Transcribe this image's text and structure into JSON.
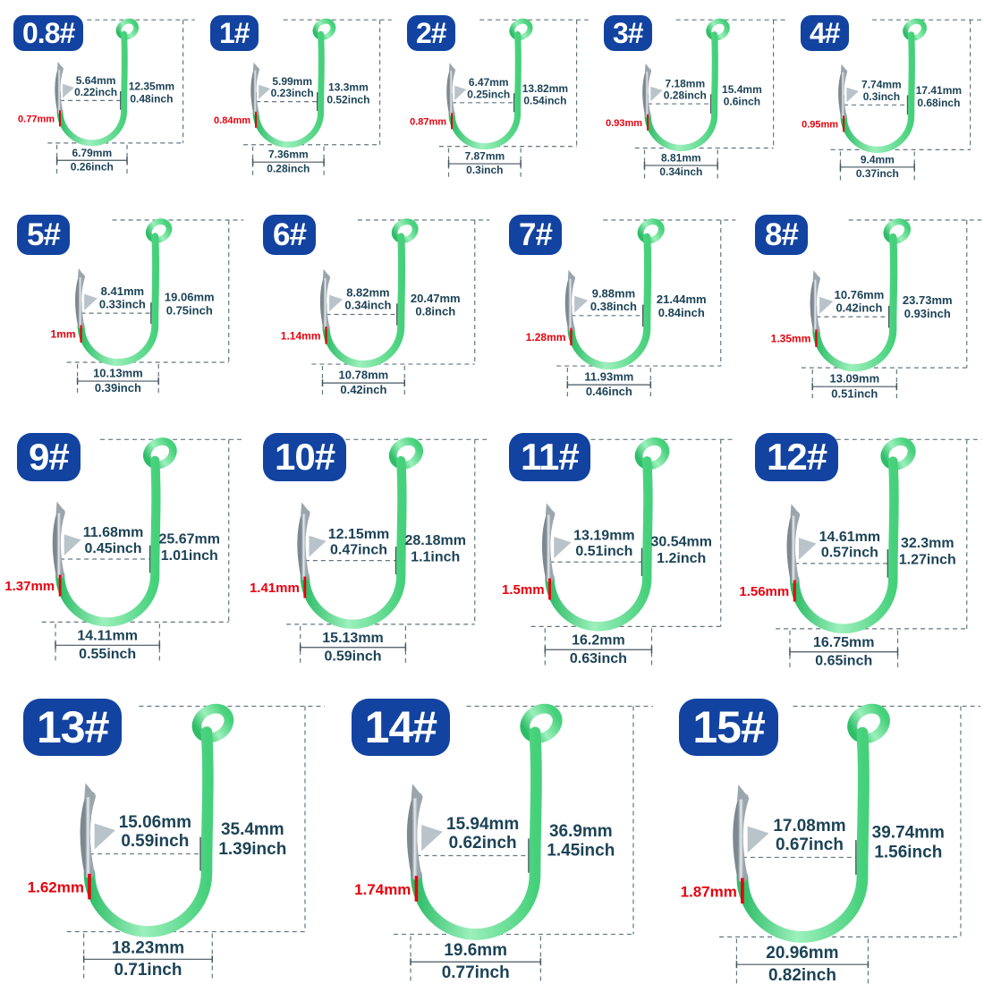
{
  "title": "fishing-hook-size-chart",
  "colors": {
    "badge_blue": "#1243a0",
    "label_navy": "#1c4356",
    "wire_red": "#e8000d",
    "dash_gray": "#64777f",
    "hook_green_dark": "#2ebd68",
    "hook_green_light": "#9cf0bc",
    "hook_green_mid": "#45d07a",
    "silver_dark": "#7d8890",
    "silver_light": "#e8edf0",
    "silver_mid": "#9aa5ac",
    "barb_silver": "#b9c3ca"
  },
  "hooks": [
    {
      "size": "0.8#",
      "height_mm": "12.35mm",
      "height_in": "0.48inch",
      "gap_mm": "5.64mm",
      "gap_in": "0.22inch",
      "wire": "0.77mm",
      "width_mm": "6.79mm",
      "width_in": "0.26inch"
    },
    {
      "size": "1#",
      "height_mm": "13.3mm",
      "height_in": "0.52inch",
      "gap_mm": "5.99mm",
      "gap_in": "0.23inch",
      "wire": "0.84mm",
      "width_mm": "7.36mm",
      "width_in": "0.28inch"
    },
    {
      "size": "2#",
      "height_mm": "13.82mm",
      "height_in": "0.54inch",
      "gap_mm": "6.47mm",
      "gap_in": "0.25inch",
      "wire": "0.87mm",
      "width_mm": "7.87mm",
      "width_in": "0.3inch"
    },
    {
      "size": "3#",
      "height_mm": "15.4mm",
      "height_in": "0.6inch",
      "gap_mm": "7.18mm",
      "gap_in": "0.28inch",
      "wire": "0.93mm",
      "width_mm": "8.81mm",
      "width_in": "0.34inch"
    },
    {
      "size": "4#",
      "height_mm": "17.41mm",
      "height_in": "0.68inch",
      "gap_mm": "7.74mm",
      "gap_in": "0.3inch",
      "wire": "0.95mm",
      "width_mm": "9.4mm",
      "width_in": "0.37inch"
    },
    {
      "size": "5#",
      "height_mm": "19.06mm",
      "height_in": "0.75inch",
      "gap_mm": "8.41mm",
      "gap_in": "0.33inch",
      "wire": "1mm",
      "width_mm": "10.13mm",
      "width_in": "0.39inch"
    },
    {
      "size": "6#",
      "height_mm": "20.47mm",
      "height_in": "0.8inch",
      "gap_mm": "8.82mm",
      "gap_in": "0.34inch",
      "wire": "1.14mm",
      "width_mm": "10.78mm",
      "width_in": "0.42inch"
    },
    {
      "size": "7#",
      "height_mm": "21.44mm",
      "height_in": "0.84inch",
      "gap_mm": "9.88mm",
      "gap_in": "0.38inch",
      "wire": "1.28mm",
      "width_mm": "11.93mm",
      "width_in": "0.46inch"
    },
    {
      "size": "8#",
      "height_mm": "23.73mm",
      "height_in": "0.93inch",
      "gap_mm": "10.76mm",
      "gap_in": "0.42inch",
      "wire": "1.35mm",
      "width_mm": "13.09mm",
      "width_in": "0.51inch"
    },
    {
      "size": "9#",
      "height_mm": "25.67mm",
      "height_in": "1.01inch",
      "gap_mm": "11.68mm",
      "gap_in": "0.45inch",
      "wire": "1.37mm",
      "width_mm": "14.11mm",
      "width_in": "0.55inch"
    },
    {
      "size": "10#",
      "height_mm": "28.18mm",
      "height_in": "1.1inch",
      "gap_mm": "12.15mm",
      "gap_in": "0.47inch",
      "wire": "1.41mm",
      "width_mm": "15.13mm",
      "width_in": "0.59inch"
    },
    {
      "size": "11#",
      "height_mm": "30.54mm",
      "height_in": "1.2inch",
      "gap_mm": "13.19mm",
      "gap_in": "0.51inch",
      "wire": "1.5mm",
      "width_mm": "16.2mm",
      "width_in": "0.63inch"
    },
    {
      "size": "12#",
      "height_mm": "32.3mm",
      "height_in": "1.27inch",
      "gap_mm": "14.61mm",
      "gap_in": "0.57inch",
      "wire": "1.56mm",
      "width_mm": "16.75mm",
      "width_in": "0.65inch"
    },
    {
      "size": "13#",
      "height_mm": "35.4mm",
      "height_in": "1.39inch",
      "gap_mm": "15.06mm",
      "gap_in": "0.59inch",
      "wire": "1.62mm",
      "width_mm": "18.23mm",
      "width_in": "0.71inch"
    },
    {
      "size": "14#",
      "height_mm": "36.9mm",
      "height_in": "1.45inch",
      "gap_mm": "15.94mm",
      "gap_in": "0.62inch",
      "wire": "1.74mm",
      "width_mm": "19.6mm",
      "width_in": "0.77inch"
    },
    {
      "size": "15#",
      "height_mm": "39.74mm",
      "height_in": "1.56inch",
      "gap_mm": "17.08mm",
      "gap_in": "0.67inch",
      "wire": "1.87mm",
      "width_mm": "20.96mm",
      "width_in": "0.82inch"
    }
  ]
}
